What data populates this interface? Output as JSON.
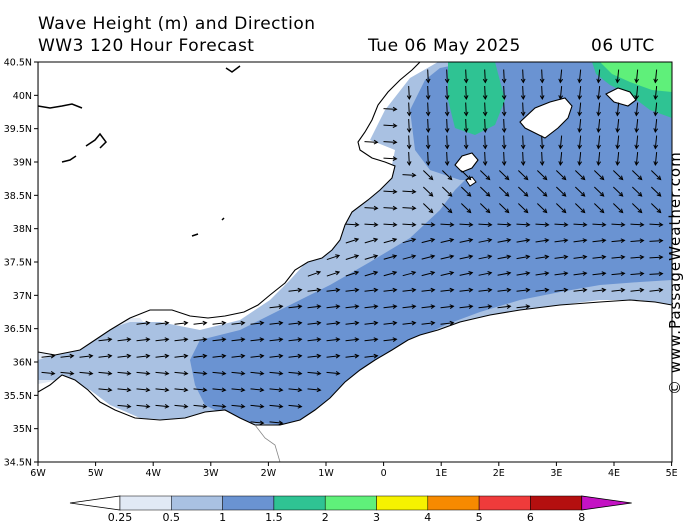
{
  "header": {
    "line1": "Wave Height (m) and Direction",
    "line2": "WW3 120 Hour Forecast",
    "date": "Tue 06 May 2025",
    "time": "06 UTC"
  },
  "watermark": "© www.PassageWeather.com",
  "axes": {
    "lat_labels": [
      "40.5N",
      "40N",
      "39.5N",
      "39N",
      "38.5N",
      "38N",
      "37.5N",
      "37N",
      "36.5N",
      "36N",
      "35.5N",
      "35N",
      "34.5N"
    ],
    "lon_labels": [
      "6W",
      "5W",
      "4W",
      "3W",
      "2W",
      "1W",
      "0",
      "1E",
      "2E",
      "3E",
      "4E",
      "5E"
    ]
  },
  "legend": {
    "unit": "m",
    "bins": [
      {
        "color": "#e1e9f5"
      },
      {
        "color": "#a9c1e2"
      },
      {
        "color": "#6a93d2"
      },
      {
        "color": "#2fc393"
      },
      {
        "color": "#5ff07a"
      },
      {
        "color": "#f6f200"
      },
      {
        "color": "#f78a00"
      },
      {
        "color": "#ef3b3b"
      },
      {
        "color": "#b40f0f"
      },
      {
        "color": "#c412c4"
      }
    ],
    "tick_labels": [
      "0.25",
      "0.5",
      "1",
      "1.5",
      "2",
      "3",
      "4",
      "5",
      "6",
      "8"
    ]
  },
  "colors": {
    "land": "#ffffff",
    "coast": "#000000",
    "arrow": "#000000"
  }
}
